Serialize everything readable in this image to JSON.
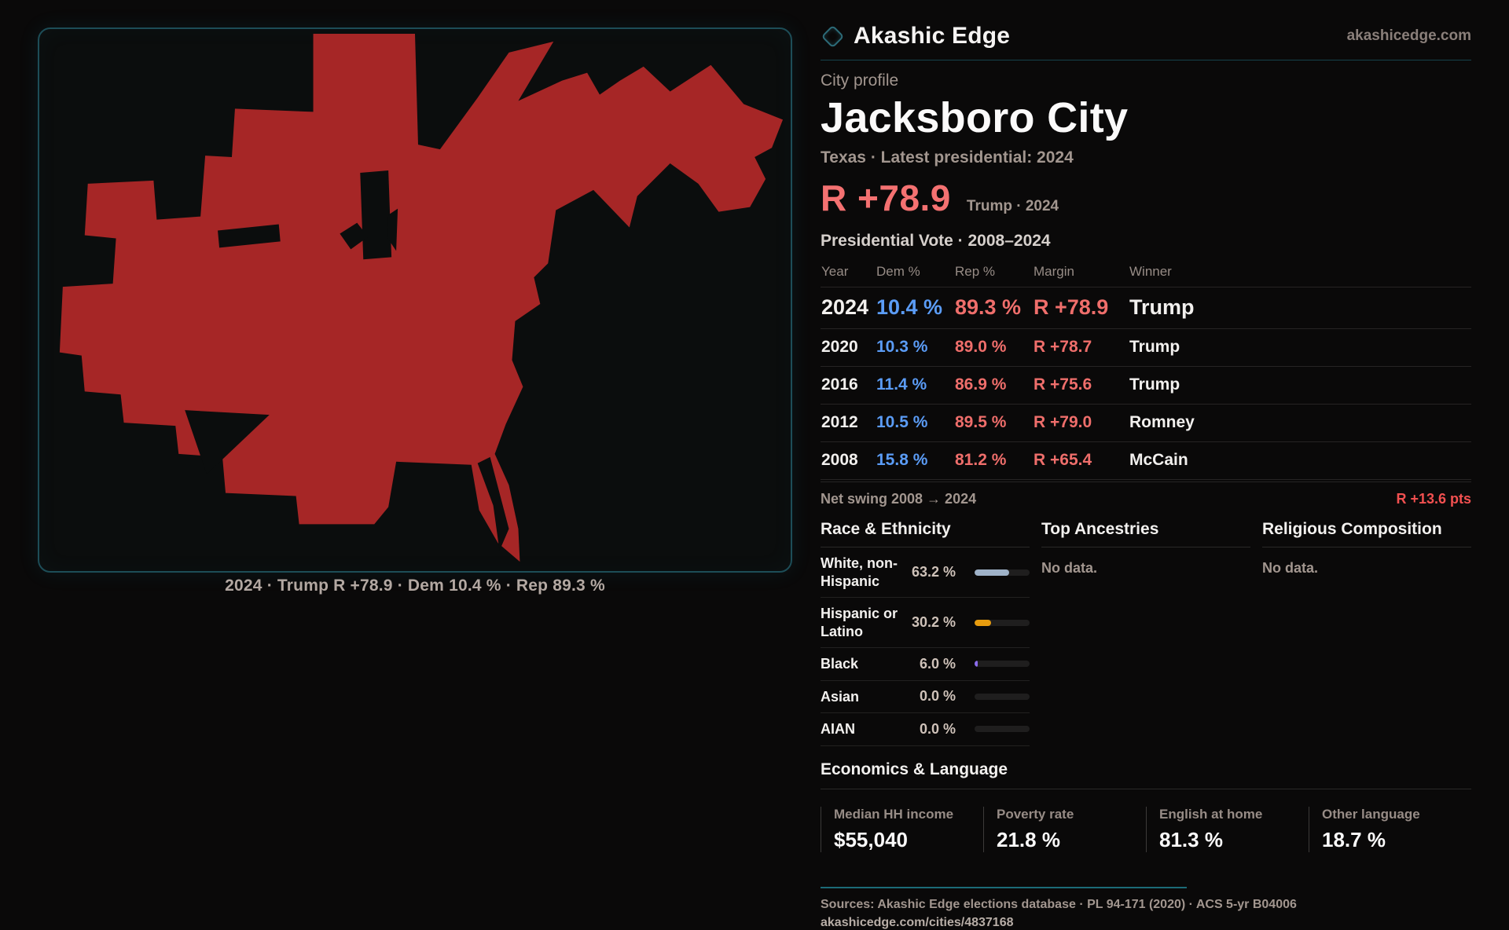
{
  "brand": {
    "name": "Akashic Edge",
    "domain": "akashicedge.com"
  },
  "profile": {
    "kicker": "City profile",
    "title": "Jacksboro City",
    "subtitle": "Texas · Latest presidential: 2024",
    "headline_margin": "R +78.9",
    "headline_context": "Trump · 2024"
  },
  "map": {
    "caption": "2024 · Trump R +78.9 · Dem 10.4 % · Rep 89.3 %",
    "fill_color": "#a62626",
    "border_color": "#1d4d57"
  },
  "vote_table": {
    "title": "Presidential Vote · 2008–2024",
    "columns": {
      "year": "Year",
      "dem": "Dem %",
      "rep": "Rep %",
      "margin": "Margin",
      "winner": "Winner"
    },
    "rows": [
      {
        "year": "2024",
        "dem": "10.4 %",
        "rep": "89.3 %",
        "margin": "R +78.9",
        "winner": "Trump"
      },
      {
        "year": "2020",
        "dem": "10.3 %",
        "rep": "89.0 %",
        "margin": "R +78.7",
        "winner": "Trump"
      },
      {
        "year": "2016",
        "dem": "11.4 %",
        "rep": "86.9 %",
        "margin": "R +75.6",
        "winner": "Trump"
      },
      {
        "year": "2012",
        "dem": "10.5 %",
        "rep": "89.5 %",
        "margin": "R +79.0",
        "winner": "Romney"
      },
      {
        "year": "2008",
        "dem": "15.8 %",
        "rep": "81.2 %",
        "margin": "R +65.4",
        "winner": "McCain"
      }
    ],
    "net_swing_label": "Net swing 2008 → 2024",
    "net_swing_value": "R +13.6 pts"
  },
  "demographics": {
    "race": {
      "heading": "Race & Ethnicity",
      "rows": [
        {
          "label": "White, non-Hispanic",
          "value": "63.2 %",
          "pct": 63.2,
          "color": "#9fb2c8"
        },
        {
          "label": "Hispanic or Latino",
          "value": "30.2 %",
          "pct": 30.2,
          "color": "#e79c0e"
        },
        {
          "label": "Black",
          "value": "6.0 %",
          "pct": 6.0,
          "color": "#8b6ced"
        },
        {
          "label": "Asian",
          "value": "0.0 %",
          "pct": 0,
          "color": "#9fb2c8"
        },
        {
          "label": "AIAN",
          "value": "0.0 %",
          "pct": 0,
          "color": "#9fb2c8"
        }
      ]
    },
    "ancestries": {
      "heading": "Top Ancestries",
      "empty": "No data."
    },
    "religion": {
      "heading": "Religious Composition",
      "empty": "No data."
    }
  },
  "economics": {
    "heading": "Economics & Language",
    "stats": [
      {
        "label": "Median HH income",
        "value": "$55,040"
      },
      {
        "label": "Poverty rate",
        "value": "21.8 %"
      },
      {
        "label": "English at home",
        "value": "81.3 %"
      },
      {
        "label": "Other language",
        "value": "18.7 %"
      }
    ]
  },
  "footer": {
    "sources": "Sources: Akashic Edge elections database · PL 94-171 (2020) · ACS 5-yr B04006",
    "link": "akashicedge.com/cities/4837168"
  },
  "chart_data": {
    "type": "table",
    "title": "Presidential Vote · 2008–2024",
    "categories": [
      2024,
      2020,
      2016,
      2012,
      2008
    ],
    "series": [
      {
        "name": "Dem %",
        "values": [
          10.4,
          10.3,
          11.4,
          10.5,
          15.8
        ]
      },
      {
        "name": "Rep %",
        "values": [
          89.3,
          89.0,
          86.9,
          89.5,
          81.2
        ]
      },
      {
        "name": "Margin (R +)",
        "values": [
          78.9,
          78.7,
          75.6,
          79.0,
          65.4
        ]
      }
    ],
    "race_bars": {
      "categories": [
        "White, non-Hispanic",
        "Hispanic or Latino",
        "Black",
        "Asian",
        "AIAN"
      ],
      "values": [
        63.2,
        30.2,
        6.0,
        0.0,
        0.0
      ]
    }
  }
}
